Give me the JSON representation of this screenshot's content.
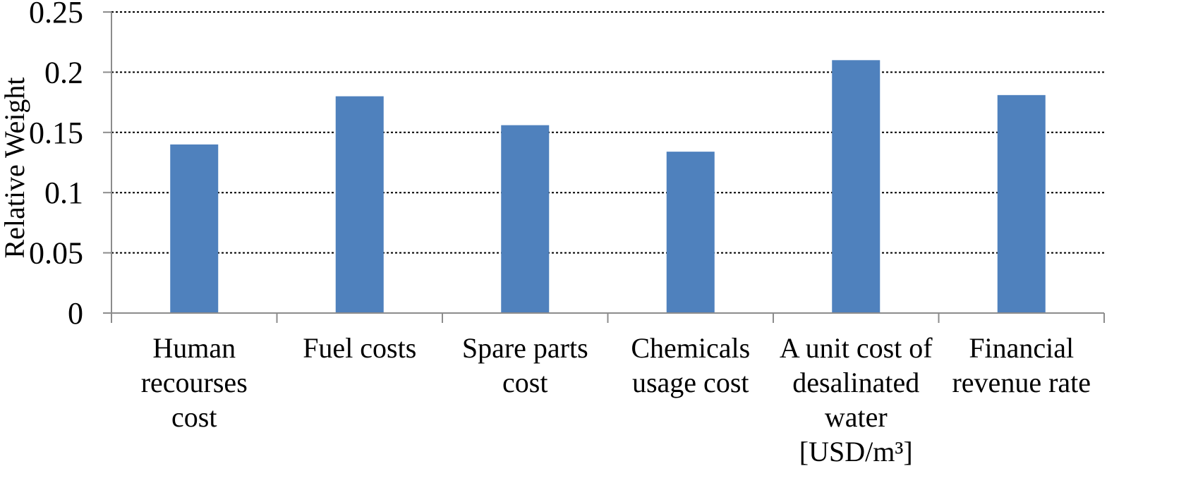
{
  "chart_data": {
    "type": "bar",
    "title": "",
    "xlabel": "",
    "ylabel": "Relative Weight",
    "ylim": [
      0,
      0.25
    ],
    "yticks": [
      "0",
      "0.05",
      "0.1",
      "0.15",
      "0.2",
      "0.25"
    ],
    "grid": "horizontal dotted",
    "bar_color": "#4F81BD",
    "categories": [
      [
        "Human",
        "recourses",
        "cost"
      ],
      [
        "Fuel costs"
      ],
      [
        "Spare parts",
        "cost"
      ],
      [
        "Chemicals",
        "usage cost"
      ],
      [
        "A unit cost of",
        "desalinated",
        "water",
        "[USD/m³]"
      ],
      [
        "Financial",
        "revenue rate"
      ]
    ],
    "values": [
      0.14,
      0.18,
      0.156,
      0.134,
      0.21,
      0.181
    ]
  }
}
